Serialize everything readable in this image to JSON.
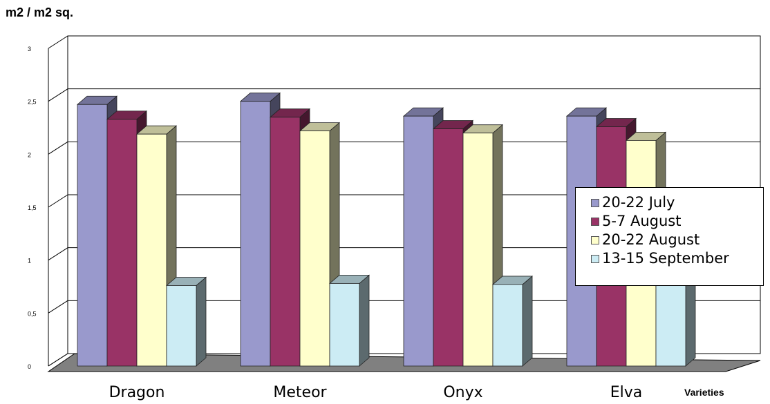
{
  "chart_data": {
    "type": "bar",
    "ylabel": "m2 / m2 sq.",
    "xlabel": "Varieties",
    "categories": [
      "Dragon",
      "Meteor",
      "Onyx",
      "Elva"
    ],
    "series": [
      {
        "name": "20-22 July",
        "color": "#9999cc",
        "values": [
          2.47,
          2.5,
          2.36,
          2.36
        ]
      },
      {
        "name": "5-7 August",
        "color": "#993366",
        "values": [
          2.33,
          2.35,
          2.24,
          2.26
        ]
      },
      {
        "name": "20-22 August",
        "color": "#ffffcc",
        "values": [
          2.19,
          2.22,
          2.2,
          2.13
        ]
      },
      {
        "name": "13-15 September",
        "color": "#ccecf4",
        "values": [
          0.76,
          0.78,
          0.77,
          0.78
        ]
      }
    ],
    "yticks": [
      "0",
      "0,5",
      "1",
      "1,5",
      "2",
      "2,5",
      "3"
    ],
    "ylim": [
      0,
      3
    ],
    "grid": true,
    "legend_position": "right"
  }
}
